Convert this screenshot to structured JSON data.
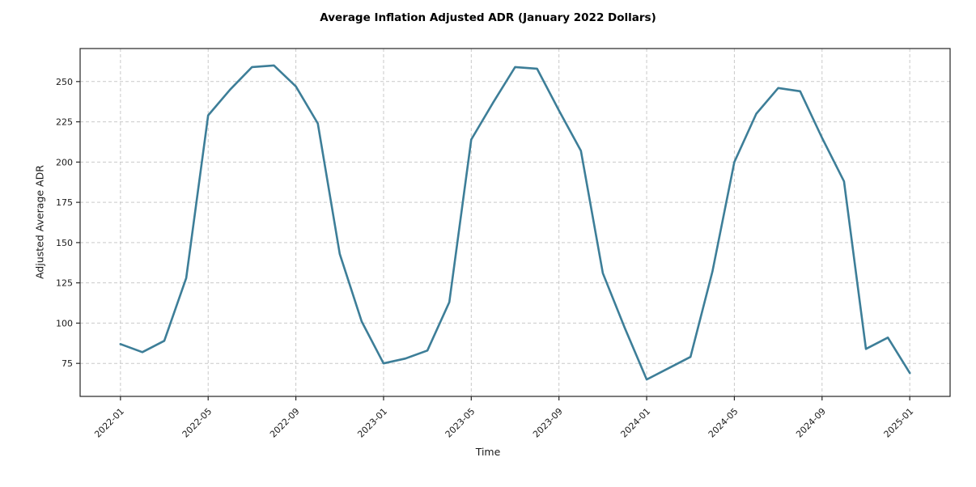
{
  "figure": {
    "title": "Average Inflation Adjusted ADR (January 2022 Dollars)",
    "xlabel": "Time",
    "ylabel": "Adjusted Average ADR"
  },
  "chart_data": {
    "type": "line",
    "title": "Average Inflation Adjusted ADR (January 2022 Dollars)",
    "xlabel": "Time",
    "ylabel": "Adjusted Average ADR",
    "categories": [
      "2022-01",
      "2022-02",
      "2022-03",
      "2022-04",
      "2022-05",
      "2022-06",
      "2022-07",
      "2022-08",
      "2022-09",
      "2022-10",
      "2022-11",
      "2022-12",
      "2023-01",
      "2023-02",
      "2023-03",
      "2023-04",
      "2023-05",
      "2023-06",
      "2023-07",
      "2023-08",
      "2023-09",
      "2023-10",
      "2023-11",
      "2023-12",
      "2024-01",
      "2024-02",
      "2024-03",
      "2024-04",
      "2024-05",
      "2024-06",
      "2024-07",
      "2024-08",
      "2024-09",
      "2024-10",
      "2024-11",
      "2024-12",
      "2025-01"
    ],
    "values": [
      87,
      82,
      89,
      128,
      229,
      245,
      259,
      260,
      247,
      224,
      143,
      101,
      75,
      78,
      83,
      113,
      214,
      237,
      259,
      258,
      232,
      207,
      131,
      97,
      65,
      72,
      79,
      132,
      200,
      230,
      246,
      244,
      215,
      188,
      84,
      91,
      69
    ],
    "x_tick_labels": [
      "2022-01",
      "2022-05",
      "2022-09",
      "2023-01",
      "2023-05",
      "2023-09",
      "2024-01",
      "2024-05",
      "2024-09",
      "2025-01"
    ],
    "x_tick_every_n_months": 4,
    "y_ticks": [
      75,
      100,
      125,
      150,
      175,
      200,
      225,
      250
    ],
    "ylim": [
      54.5,
      270.5
    ],
    "x_margin_months": 1.84,
    "grid": "dashed-both-axes",
    "legend": "none",
    "line_color": "#3d7e98",
    "grid_color": "#c9c9c9",
    "spine_color": "#262626"
  }
}
